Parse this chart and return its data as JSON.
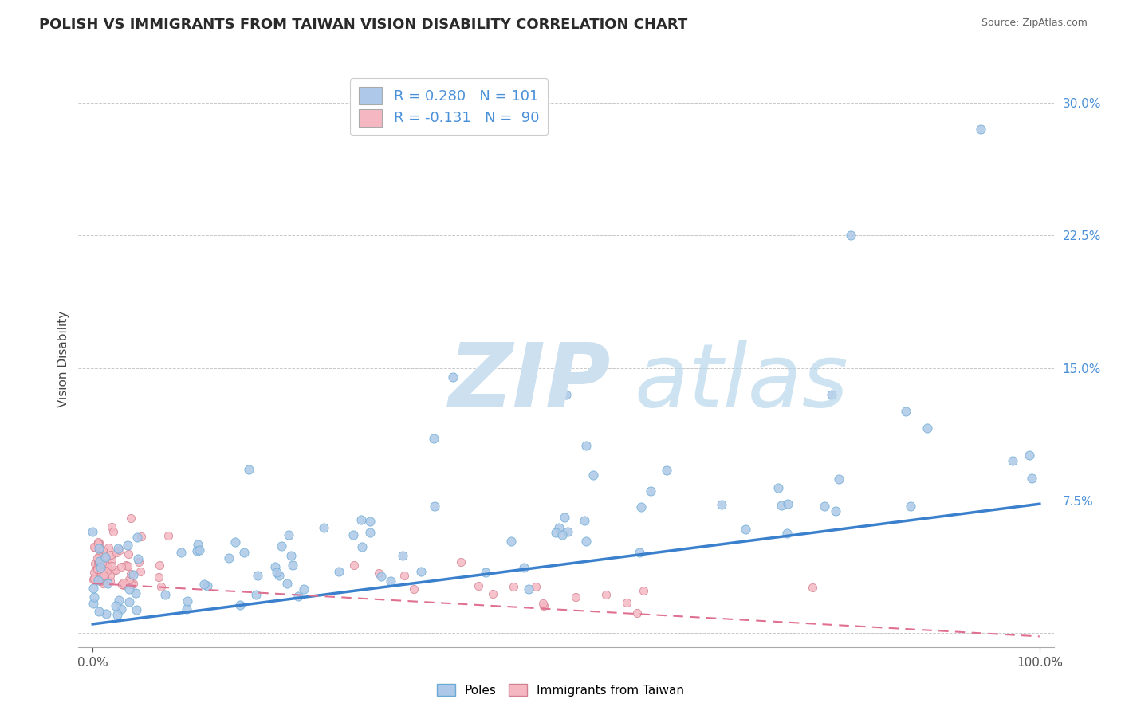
{
  "title": "POLISH VS IMMIGRANTS FROM TAIWAN VISION DISABILITY CORRELATION CHART",
  "source": "Source: ZipAtlas.com",
  "ylabel": "Vision Disability",
  "poles_color": "#adc8e8",
  "poles_edge_color": "#6aaad4",
  "taiwan_color": "#f5b8c2",
  "taiwan_edge_color": "#d08090",
  "trend_poles_color": "#3a80cc",
  "trend_taiwan_color": "#e07090",
  "background_color": "#ffffff",
  "watermark_zip_color": "#cce0f0",
  "watermark_atlas_color": "#b8d8ec",
  "R_poles": 0.28,
  "N_poles": 101,
  "R_taiwan": -0.131,
  "N_taiwan": 90,
  "title_fontsize": 13,
  "axis_label_fontsize": 11,
  "tick_fontsize": 11,
  "legend_fontsize": 13,
  "y_tick_vals": [
    0.0,
    0.075,
    0.15,
    0.225,
    0.3
  ],
  "y_tick_labels": [
    "",
    "7.5%",
    "15.0%",
    "22.5%",
    "30.0%"
  ],
  "tick_color": "#4a90d9",
  "trend_poles_intercept": 0.005,
  "trend_poles_slope": 0.068,
  "trend_taiwan_intercept": 0.028,
  "trend_taiwan_slope": -0.03
}
